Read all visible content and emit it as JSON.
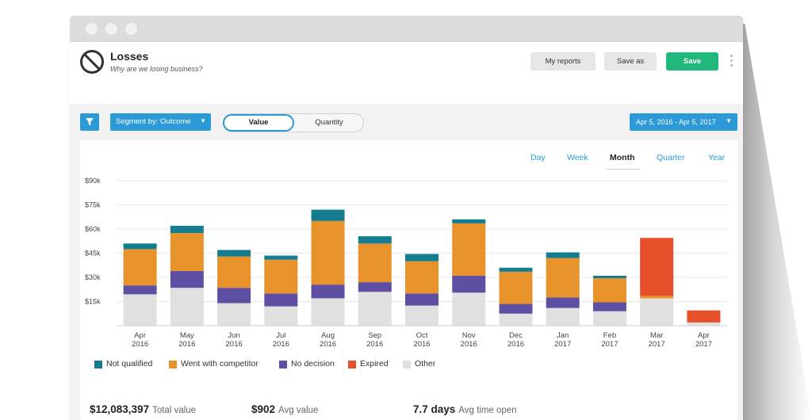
{
  "header": {
    "title": "Losses",
    "subtitle": "Why are we losing business?",
    "my_reports_label": "My reports",
    "save_as_label": "Save as",
    "save_label": "Save"
  },
  "toolbar": {
    "segment_label": "Segment by: Outcome",
    "toggle_value_label": "Value",
    "toggle_quantity_label": "Quantity",
    "toggle_selected": "Value",
    "date_range_label": "Apr 5, 2016 - Apr 5, 2017"
  },
  "periods": {
    "items": [
      "Day",
      "Week",
      "Month",
      "Quarter",
      "Year"
    ],
    "selected": "Month"
  },
  "colors": {
    "accent_blue": "#2d9ad8",
    "save_green": "#21b87b",
    "not_qualified": "#137d8f",
    "went_with_competitor": "#e8922b",
    "no_decision": "#5e4fa3",
    "expired": "#e5502a",
    "other": "#e0e0e0"
  },
  "chart_data": {
    "type": "bar",
    "stacked": true,
    "categories": [
      [
        "Apr",
        "2016"
      ],
      [
        "May",
        "2016"
      ],
      [
        "Jun",
        "2016"
      ],
      [
        "Jul",
        "2016"
      ],
      [
        "Aug",
        "2016"
      ],
      [
        "Sep",
        "2016"
      ],
      [
        "Oct",
        "2016"
      ],
      [
        "Nov",
        "2016"
      ],
      [
        "Dec",
        "2016"
      ],
      [
        "Jan",
        "2017"
      ],
      [
        "Feb",
        "2017"
      ],
      [
        "Mar",
        "2017"
      ],
      [
        "Apr",
        "2017"
      ]
    ],
    "y_ticks": [
      "$15k",
      "$30k",
      "$45k",
      "$60k",
      "$75k",
      "$90k"
    ],
    "ylim": [
      0,
      90000
    ],
    "grid": true,
    "legend_position": "bottom-left",
    "series": [
      {
        "name": "Other",
        "color": "#e0e0e0",
        "values": [
          19500,
          23500,
          14000,
          12000,
          17000,
          21000,
          12500,
          20500,
          7500,
          11000,
          9000,
          17000,
          2000
        ]
      },
      {
        "name": "No decision",
        "color": "#5e4fa3",
        "values": [
          5500,
          10500,
          9500,
          8000,
          8500,
          6000,
          7500,
          10500,
          6000,
          6500,
          5500,
          0,
          0
        ]
      },
      {
        "name": "Went with competitor",
        "color": "#e8922b",
        "values": [
          22500,
          23500,
          19500,
          21000,
          39500,
          24000,
          20000,
          32500,
          20000,
          24500,
          15000,
          1500,
          0
        ]
      },
      {
        "name": "Expired",
        "color": "#e5502a",
        "values": [
          0,
          0,
          0,
          0,
          0,
          0,
          0,
          0,
          0,
          0,
          0,
          36000,
          7500
        ]
      },
      {
        "name": "Not qualified",
        "color": "#137d8f",
        "values": [
          3500,
          4500,
          4000,
          2500,
          7000,
          4500,
          4500,
          2500,
          2500,
          3500,
          1500,
          0,
          0
        ]
      }
    ],
    "legend": [
      "Not qualified",
      "Went with competitor",
      "No decision",
      "Expired",
      "Other"
    ]
  },
  "stats": [
    {
      "value": "$12,083,397",
      "caption": "Total value"
    },
    {
      "value": "$902",
      "caption": "Avg value"
    },
    {
      "value": "7.7 days",
      "caption": "Avg time open"
    }
  ]
}
